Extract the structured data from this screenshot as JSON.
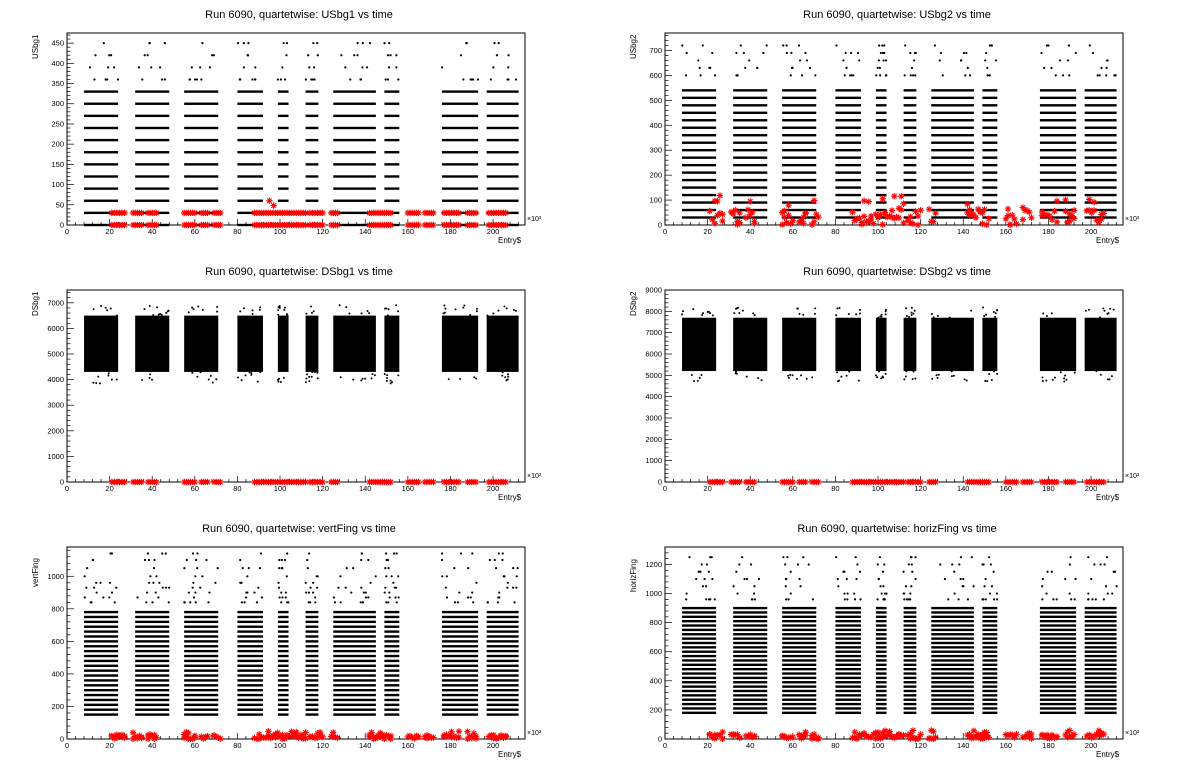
{
  "chart_data": [
    {
      "type": "scatter",
      "title": "Run 6090, quartetwise: USbg1 vs time",
      "xlabel": "Entry$",
      "ylabel": "USbg1",
      "x_exponent": "×10³",
      "xlim": [
        0,
        215
      ],
      "ylim": [
        0,
        475
      ],
      "xticks": [
        0,
        20,
        40,
        60,
        80,
        100,
        120,
        140,
        160,
        180,
        200
      ],
      "yticks": [
        0,
        50,
        100,
        150,
        200,
        250,
        300,
        350,
        400,
        450
      ],
      "black_series": {
        "kind": "bands",
        "levels": [
          0,
          30,
          60,
          90,
          120,
          150,
          180,
          210,
          240,
          270,
          300,
          330,
          360
        ],
        "max_level": 330,
        "outlier_levels": [
          360,
          390,
          420,
          450
        ]
      },
      "red_series": {
        "kind": "near_zero",
        "levels": [
          0,
          30
        ],
        "spike_at": 95,
        "spike_value": 60
      },
      "grid": false
    },
    {
      "type": "scatter",
      "title": "Run 6090, quartetwise: USbg2 vs time",
      "xlabel": "Entry$",
      "ylabel": "USbg2",
      "x_exponent": "×10³",
      "xlim": [
        0,
        215
      ],
      "ylim": [
        0,
        770
      ],
      "xticks": [
        0,
        20,
        40,
        60,
        80,
        100,
        120,
        140,
        160,
        180,
        200
      ],
      "yticks": [
        0,
        100,
        200,
        300,
        400,
        500,
        600,
        700
      ],
      "black_series": {
        "kind": "bands",
        "levels": [
          30,
          60,
          90,
          120,
          150,
          180,
          210,
          240,
          270,
          300,
          330,
          360,
          390,
          420,
          450,
          480,
          510,
          540,
          570,
          600
        ],
        "max_level": 540,
        "outlier_levels": [
          600,
          630,
          660,
          690,
          720
        ]
      },
      "red_series": {
        "kind": "scatter_low",
        "max_value": 120
      },
      "grid": false
    },
    {
      "type": "scatter",
      "title": "Run 6090, quartetwise: DSbg1 vs time",
      "xlabel": "Entry$",
      "ylabel": "DSbg1",
      "x_exponent": "×10³",
      "xlim": [
        0,
        215
      ],
      "ylim": [
        0,
        7500
      ],
      "xticks": [
        0,
        20,
        40,
        60,
        80,
        100,
        120,
        140,
        160,
        180,
        200
      ],
      "yticks": [
        0,
        1000,
        2000,
        3000,
        4000,
        5000,
        6000,
        7000
      ],
      "black_series": {
        "kind": "blobs",
        "center": 5300,
        "low": 4300,
        "high": 6500
      },
      "red_series": {
        "kind": "flat",
        "value": 0
      },
      "grid": false
    },
    {
      "type": "scatter",
      "title": "Run 6090, quartetwise: DSbg2 vs time",
      "xlabel": "Entry$",
      "ylabel": "DSbg2",
      "x_exponent": "×10³",
      "xlim": [
        0,
        215
      ],
      "ylim": [
        0,
        9000
      ],
      "xticks": [
        0,
        20,
        40,
        60,
        80,
        100,
        120,
        140,
        160,
        180,
        200
      ],
      "yticks": [
        0,
        1000,
        2000,
        3000,
        4000,
        5000,
        6000,
        7000,
        8000,
        9000
      ],
      "black_series": {
        "kind": "blobs",
        "center": 6300,
        "low": 5200,
        "high": 7700
      },
      "red_series": {
        "kind": "flat",
        "value": 0
      },
      "grid": false
    },
    {
      "type": "scatter",
      "title": "Run 6090, quartetwise: vertFing vs time",
      "xlabel": "Entry$",
      "ylabel": "vertFing",
      "x_exponent": "×10³",
      "xlim": [
        0,
        215
      ],
      "ylim": [
        0,
        1180
      ],
      "xticks": [
        0,
        20,
        40,
        60,
        80,
        100,
        120,
        140,
        160,
        180,
        200
      ],
      "yticks": [
        0,
        200,
        400,
        600,
        800,
        1000
      ],
      "black_series": {
        "kind": "bands",
        "levels": [
          150,
          180,
          210,
          240,
          270,
          300,
          330,
          360,
          390,
          420,
          450,
          480,
          510,
          540,
          570,
          600,
          630,
          660,
          690,
          720,
          750,
          780,
          810
        ],
        "max_level": 780,
        "outlier_levels": [
          840,
          870,
          900,
          930,
          960,
          1000,
          1050,
          1100,
          1140
        ]
      },
      "red_series": {
        "kind": "scatter_low",
        "max_value": 50
      },
      "grid": false
    },
    {
      "type": "scatter",
      "title": "Run 6090, quartetwise: horizFing vs time",
      "xlabel": "Entry$",
      "ylabel": "horizFing",
      "x_exponent": "×10³",
      "xlim": [
        0,
        215
      ],
      "ylim": [
        0,
        1320
      ],
      "xticks": [
        0,
        20,
        40,
        60,
        80,
        100,
        120,
        140,
        160,
        180,
        200
      ],
      "yticks": [
        0,
        200,
        400,
        600,
        800,
        1000,
        1200
      ],
      "black_series": {
        "kind": "bands",
        "levels": [
          180,
          210,
          240,
          270,
          300,
          330,
          360,
          390,
          420,
          450,
          480,
          510,
          540,
          570,
          600,
          630,
          660,
          690,
          720,
          750,
          780,
          810,
          840,
          870,
          900,
          930
        ],
        "max_level": 900,
        "outlier_levels": [
          960,
          1000,
          1050,
          1100,
          1150,
          1200,
          1250
        ]
      },
      "red_series": {
        "kind": "scatter_low",
        "max_value": 60
      },
      "grid": false
    }
  ],
  "run_segments": [
    [
      8,
      24
    ],
    [
      32,
      48
    ],
    [
      55,
      71
    ],
    [
      80,
      92
    ],
    [
      99,
      104
    ],
    [
      112,
      118
    ],
    [
      125,
      145
    ],
    [
      149,
      156
    ],
    [
      176,
      193
    ],
    [
      197,
      212
    ]
  ],
  "red_groups": [
    [
      21,
      27
    ],
    [
      31,
      35
    ],
    [
      38,
      42
    ],
    [
      55,
      60
    ],
    [
      63,
      66
    ],
    [
      69,
      72
    ],
    [
      88,
      112
    ],
    [
      114,
      120
    ],
    [
      124,
      127
    ],
    [
      142,
      147
    ],
    [
      148,
      152
    ],
    [
      160,
      165
    ],
    [
      168,
      172
    ],
    [
      177,
      184
    ],
    [
      188,
      192
    ],
    [
      198,
      206
    ]
  ],
  "colors": {
    "black_marker": "#000000",
    "red_marker": "#ff0000",
    "frame": "#000000",
    "background": "#ffffff"
  }
}
